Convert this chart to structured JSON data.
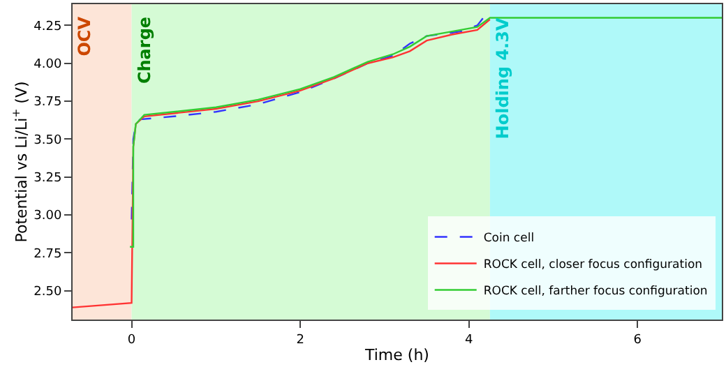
{
  "chart_data": {
    "type": "line",
    "xlabel": "Time (h)",
    "ylabel": "Potential vs Li/Li$^{+}$ (V)",
    "xlim": [
      -0.7,
      7
    ],
    "ylim": [
      2.31,
      4.39
    ],
    "xticks": [
      0,
      2,
      4,
      6
    ],
    "yticks": [
      {
        "value": 2.5,
        "label": "2.50"
      },
      {
        "value": 2.75,
        "label": "2.75"
      },
      {
        "value": 3.0,
        "label": "3.00"
      },
      {
        "value": 3.25,
        "label": "3.25"
      },
      {
        "value": 3.5,
        "label": "3.50"
      },
      {
        "value": 3.75,
        "label": "3.75"
      },
      {
        "value": 4.0,
        "label": "4.00"
      },
      {
        "value": 4.25,
        "label": "4.25"
      }
    ],
    "grid": false,
    "legend": "bottom right",
    "marker": "none",
    "bands": [
      {
        "axis": "x",
        "from": -0.7,
        "to": 0,
        "label": "OCV",
        "color": "#fde5d8"
      },
      {
        "axis": "x",
        "from": 0,
        "to": 4.25,
        "label": "Charge",
        "color": "#d5fbd5"
      },
      {
        "axis": "x",
        "from": 4.25,
        "to": 7,
        "label": "Holding 4.3V",
        "color": "#aff9f9"
      }
    ],
    "series": [
      {
        "name": "Coin cell",
        "color": "#3333ff",
        "line_style": "dashed",
        "x": [
          0,
          0.02,
          0.05,
          0.1,
          0.3,
          0.5,
          1.0,
          1.5,
          2.0,
          2.4,
          2.8,
          3.1,
          3.3,
          3.5,
          3.9,
          4.1,
          4.2
        ],
        "values": [
          2.97,
          3.5,
          3.6,
          3.63,
          3.64,
          3.65,
          3.68,
          3.73,
          3.81,
          3.9,
          4.0,
          4.05,
          4.13,
          4.18,
          4.21,
          4.25,
          4.32
        ]
      },
      {
        "name": "ROCK cell, closer focus configuration",
        "color": "#ff3333",
        "line_style": "solid",
        "x": [
          -0.7,
          0,
          0.02,
          0.05,
          0.15,
          0.5,
          1.0,
          1.5,
          2.0,
          2.4,
          2.8,
          3.1,
          3.3,
          3.5,
          3.8,
          4.1,
          4.25
        ],
        "values": [
          2.39,
          2.42,
          3.45,
          3.6,
          3.65,
          3.67,
          3.7,
          3.75,
          3.82,
          3.9,
          4.0,
          4.04,
          4.08,
          4.15,
          4.19,
          4.22,
          4.29
        ]
      },
      {
        "name": "ROCK cell, farther focus configuration",
        "color": "#33cc33",
        "line_style": "solid",
        "x": [
          -0.02,
          0.02,
          0.02,
          0.05,
          0.15,
          0.5,
          1.0,
          1.5,
          2.0,
          2.4,
          2.8,
          3.1,
          3.3,
          3.5,
          3.8,
          4.1,
          4.25,
          7
        ],
        "values": [
          2.79,
          2.79,
          3.45,
          3.6,
          3.66,
          3.68,
          3.71,
          3.76,
          3.83,
          3.91,
          4.01,
          4.06,
          4.11,
          4.18,
          4.21,
          4.24,
          4.3,
          4.3
        ]
      }
    ]
  }
}
